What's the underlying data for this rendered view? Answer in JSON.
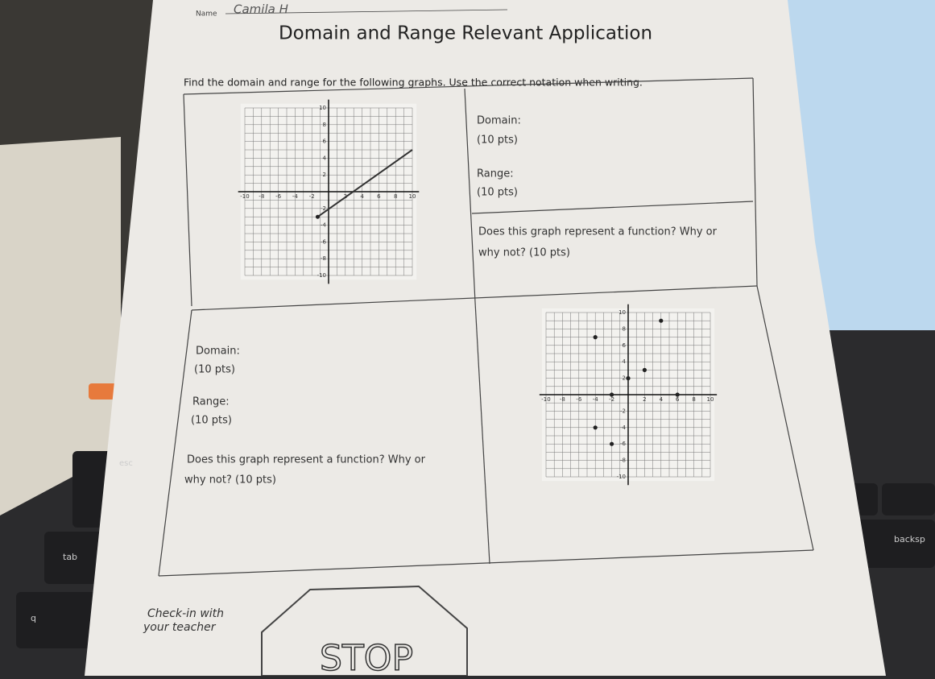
{
  "header": {
    "name_label": "Name",
    "name_value": "Camila H",
    "title": "Domain and Range Relevant Application"
  },
  "instructions": "Find the domain and range for the following graphs. Use the correct notation when writing.",
  "problems": [
    {
      "domain_label": "Domain:",
      "domain_points": "(10 pts)",
      "range_label": "Range:",
      "range_points": "(10 pts)",
      "function_question": [
        "Does this graph represent a function? Why or",
        "why not? (10 pts)"
      ],
      "graph": {
        "x_ticks": [
          -10,
          -8,
          -6,
          -4,
          -2,
          2,
          4,
          6,
          8,
          10
        ],
        "y_ticks": [
          10,
          8,
          6,
          4,
          2,
          -2,
          -4,
          -6,
          -8,
          -10
        ]
      }
    },
    {
      "domain_label": "Domain:",
      "domain_points": "(10 pts)",
      "range_label": "Range:",
      "range_points": "(10 pts)",
      "function_question": [
        "Does this graph represent a function? Why or",
        "why not? (10 pts)"
      ],
      "graph": {
        "x_ticks": [
          -10,
          -8,
          -6,
          -4,
          -2,
          2,
          4,
          6,
          8,
          10
        ],
        "y_ticks": [
          10,
          8,
          6,
          4,
          2,
          -2,
          -4,
          -6,
          -8,
          -10
        ]
      }
    }
  ],
  "footer": {
    "check_in": [
      "Check-in with",
      "your teacher"
    ],
    "stop_sign": "STOP"
  },
  "keyboard": {
    "keys": [
      "esc",
      "tab",
      "backsp",
      "q"
    ]
  }
}
